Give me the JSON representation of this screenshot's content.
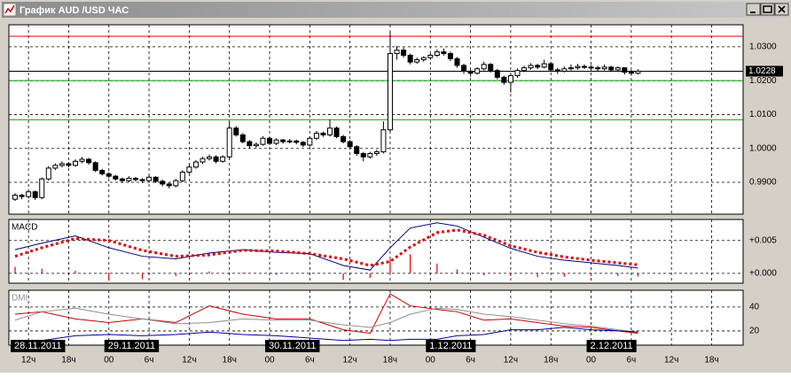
{
  "window": {
    "title": "График AUD /USD ЧАС"
  },
  "chart_data": [
    {
      "type": "candlestick",
      "candles": [
        [
          0.985,
          0.9868,
          0.9845,
          0.9862
        ],
        [
          0.9862,
          0.9866,
          0.985,
          0.9858
        ],
        [
          0.9858,
          0.9878,
          0.9852,
          0.9872
        ],
        [
          0.9872,
          0.9876,
          0.9848,
          0.9855
        ],
        [
          0.9855,
          0.9915,
          0.985,
          0.991
        ],
        [
          0.991,
          0.9948,
          0.9905,
          0.9942
        ],
        [
          0.9942,
          0.9956,
          0.9936,
          0.995
        ],
        [
          0.995,
          0.9962,
          0.9944,
          0.9955
        ],
        [
          0.9955,
          0.996,
          0.9944,
          0.995
        ],
        [
          0.995,
          0.9968,
          0.9946,
          0.9962
        ],
        [
          0.9962,
          0.9975,
          0.9956,
          0.9968
        ],
        [
          0.9968,
          0.9972,
          0.9952,
          0.9958
        ],
        [
          0.9958,
          0.9962,
          0.993,
          0.9935
        ],
        [
          0.9935,
          0.994,
          0.992,
          0.9925
        ],
        [
          0.9925,
          0.993,
          0.9912,
          0.9918
        ],
        [
          0.9918,
          0.9922,
          0.9905,
          0.991
        ],
        [
          0.991,
          0.9914,
          0.9898,
          0.9905
        ],
        [
          0.9905,
          0.9918,
          0.99,
          0.9912
        ],
        [
          0.9912,
          0.9916,
          0.9902,
          0.9908
        ],
        [
          0.9908,
          0.9912,
          0.9898,
          0.9905
        ],
        [
          0.9905,
          0.9922,
          0.99,
          0.9915
        ],
        [
          0.9915,
          0.9918,
          0.9898,
          0.9903
        ],
        [
          0.9903,
          0.9908,
          0.9888,
          0.9895
        ],
        [
          0.9895,
          0.99,
          0.9882,
          0.989
        ],
        [
          0.989,
          0.991,
          0.9885,
          0.9905
        ],
        [
          0.9905,
          0.9936,
          0.99,
          0.993
        ],
        [
          0.993,
          0.9952,
          0.9925,
          0.9945
        ],
        [
          0.9945,
          0.9966,
          0.994,
          0.996
        ],
        [
          0.996,
          0.9976,
          0.9954,
          0.997
        ],
        [
          0.997,
          0.9982,
          0.9964,
          0.9975
        ],
        [
          0.9975,
          0.998,
          0.9956,
          0.9962
        ],
        [
          0.9962,
          0.998,
          0.9958,
          0.9975
        ],
        [
          0.9975,
          1.0078,
          0.997,
          1.006
        ],
        [
          1.006,
          1.0066,
          1.0035,
          1.004
        ],
        [
          1.004,
          1.0045,
          1.0015,
          1.002
        ],
        [
          1.002,
          1.0025,
          1.0,
          1.0008
        ],
        [
          1.0008,
          1.0018,
          1.0002,
          1.0012
        ],
        [
          1.0012,
          1.0036,
          1.0008,
          1.003
        ],
        [
          1.003,
          1.0034,
          1.001,
          1.0015
        ],
        [
          1.0015,
          1.003,
          1.001,
          1.0025
        ],
        [
          1.0025,
          1.0028,
          1.0014,
          1.002
        ],
        [
          1.002,
          1.0028,
          1.0015,
          1.0022
        ],
        [
          1.0022,
          1.0026,
          1.0012,
          1.0018
        ],
        [
          1.0018,
          1.0022,
          1.0004,
          1.001
        ],
        [
          1.001,
          1.0036,
          1.0005,
          1.003
        ],
        [
          1.003,
          1.0052,
          1.0025,
          1.0045
        ],
        [
          1.0045,
          1.005,
          1.0034,
          1.004
        ],
        [
          1.004,
          1.0085,
          1.0035,
          1.006
        ],
        [
          1.006,
          1.0065,
          1.003,
          1.0035
        ],
        [
          1.0035,
          1.004,
          1.0015,
          1.002
        ],
        [
          1.002,
          1.0025,
          0.9998,
          1.0005
        ],
        [
          1.0005,
          1.001,
          0.9978,
          0.9985
        ],
        [
          0.9985,
          0.999,
          0.9962,
          0.9975
        ],
        [
          0.9975,
          0.999,
          0.997,
          0.9985
        ],
        [
          0.9985,
          0.9996,
          0.9978,
          0.999
        ],
        [
          0.999,
          1.008,
          0.9985,
          1.0055
        ],
        [
          1.0055,
          1.0345,
          1.0048,
          1.028
        ],
        [
          1.028,
          1.0302,
          1.0262,
          1.029
        ],
        [
          1.029,
          1.0298,
          1.0268,
          1.0275
        ],
        [
          1.0275,
          1.028,
          1.0248,
          1.0255
        ],
        [
          1.0255,
          1.0268,
          1.025,
          1.0262
        ],
        [
          1.0262,
          1.0272,
          1.0256,
          1.0268
        ],
        [
          1.0268,
          1.028,
          1.0262,
          1.0275
        ],
        [
          1.0275,
          1.0292,
          1.027,
          1.0285
        ],
        [
          1.0285,
          1.0295,
          1.0274,
          1.028
        ],
        [
          1.028,
          1.0286,
          1.0258,
          1.0265
        ],
        [
          1.0265,
          1.027,
          1.0238,
          1.0245
        ],
        [
          1.0245,
          1.025,
          1.022,
          1.0228
        ],
        [
          1.0228,
          1.0234,
          1.0212,
          1.0222
        ],
        [
          1.0222,
          1.024,
          1.0218,
          1.0235
        ],
        [
          1.0235,
          1.0256,
          1.023,
          1.0248
        ],
        [
          1.0248,
          1.0252,
          1.0224,
          1.023
        ],
        [
          1.023,
          1.0235,
          1.0204,
          1.021
        ],
        [
          1.021,
          1.0215,
          1.0188,
          1.0195
        ],
        [
          1.0195,
          1.022,
          1.0165,
          1.0215
        ],
        [
          1.0215,
          1.0236,
          1.0208,
          1.023
        ],
        [
          1.023,
          1.0244,
          1.0225,
          1.0238
        ],
        [
          1.0238,
          1.0252,
          1.0232,
          1.0245
        ],
        [
          1.0245,
          1.025,
          1.0234,
          1.024
        ],
        [
          1.024,
          1.0262,
          1.0236,
          1.025
        ],
        [
          1.025,
          1.0255,
          1.0226,
          1.0232
        ],
        [
          1.0232,
          1.0238,
          1.022,
          1.0228
        ],
        [
          1.0228,
          1.0242,
          1.0224,
          1.0235
        ],
        [
          1.0235,
          1.0248,
          1.023,
          1.0238
        ],
        [
          1.0238,
          1.025,
          1.0232,
          1.0242
        ],
        [
          1.0242,
          1.0248,
          1.0234,
          1.024
        ],
        [
          1.024,
          1.0246,
          1.023,
          1.0238
        ],
        [
          1.0238,
          1.0244,
          1.0228,
          1.0235
        ],
        [
          1.0235,
          1.0248,
          1.023,
          1.024
        ],
        [
          1.024,
          1.0244,
          1.0226,
          1.0232
        ],
        [
          1.0232,
          1.0242,
          1.0228,
          1.0238
        ],
        [
          1.0238,
          1.024,
          1.0218,
          1.0225
        ],
        [
          1.0225,
          1.0232,
          1.0215,
          1.0222
        ],
        [
          1.0222,
          1.0234,
          1.0218,
          1.0228
        ]
      ],
      "xlim": [
        -0.93,
        108.7
      ],
      "ylim": [
        0.9806,
        1.0365
      ],
      "yticks": [
        {
          "value": 0.99,
          "label": "0.9900"
        },
        {
          "value": 1.0,
          "label": "1.0000"
        },
        {
          "value": 1.01,
          "label": "1.0100"
        },
        {
          "value": 1.02,
          "label": "1.0200"
        },
        {
          "value": 1.03,
          "label": "1.0300"
        }
      ],
      "xticks": [
        {
          "value": 2,
          "label": "12ч"
        },
        {
          "value": 8,
          "label": "18ч"
        },
        {
          "value": 14,
          "label": "00"
        },
        {
          "value": 20,
          "label": "6ч"
        },
        {
          "value": 26,
          "label": "12ч"
        },
        {
          "value": 32,
          "label": "18ч"
        },
        {
          "value": 38,
          "label": "00"
        },
        {
          "value": 44,
          "label": "6ч"
        },
        {
          "value": 50,
          "label": "12ч"
        },
        {
          "value": 56,
          "label": "18ч"
        },
        {
          "value": 62,
          "label": "00"
        },
        {
          "value": 68,
          "label": "6ч"
        },
        {
          "value": 74,
          "label": "12ч"
        },
        {
          "value": 80,
          "label": "18ч"
        },
        {
          "value": 86,
          "label": "00"
        },
        {
          "value": 92,
          "label": "6ч"
        },
        {
          "value": 98,
          "label": "12ч"
        },
        {
          "value": 104,
          "label": "18ч"
        }
      ],
      "date_labels": [
        {
          "value": 0,
          "label": "28.11.2011"
        },
        {
          "value": 14,
          "label": "29.11.2011"
        },
        {
          "value": 38,
          "label": "30.11.2011"
        },
        {
          "value": 62,
          "label": "1.12.2011"
        },
        {
          "value": 86,
          "label": "2.12.2011"
        }
      ],
      "current_price": 1.0228,
      "levels": [
        {
          "value": 1.02,
          "color": "#00a000"
        },
        {
          "value": 1.0085,
          "color": "#00a000"
        },
        {
          "value": 1.0331,
          "color": "#e00000"
        }
      ],
      "grid": true
    },
    {
      "type": "line",
      "title": "MACD",
      "x": [
        0,
        4,
        9,
        14,
        19,
        24,
        29,
        34,
        39,
        44,
        49,
        53,
        56,
        59,
        63,
        66,
        70,
        74,
        78,
        82,
        86,
        90,
        93
      ],
      "series": [
        {
          "color": "#000080",
          "values": [
            0.0036,
            0.0046,
            0.0057,
            0.0039,
            0.0026,
            0.0022,
            0.0031,
            0.0036,
            0.0032,
            0.003,
            0.0012,
            0.0005,
            0.0039,
            0.0069,
            0.0077,
            0.0072,
            0.0055,
            0.0038,
            0.0026,
            0.002,
            0.0016,
            0.0012,
            0.0008
          ]
        },
        {
          "color": "#e00000",
          "style": "dotted",
          "values": [
            0.0026,
            0.0039,
            0.0053,
            0.005,
            0.0035,
            0.0026,
            0.0028,
            0.0035,
            0.0034,
            0.003,
            0.0022,
            0.0012,
            0.0018,
            0.004,
            0.0062,
            0.0066,
            0.0058,
            0.0042,
            0.0032,
            0.0025,
            0.002,
            0.0016,
            0.0013
          ]
        }
      ],
      "histogram": {
        "color": "#e00000",
        "values": [
          0.001,
          0.0007,
          0.0004,
          -0.0011,
          -0.0009,
          -0.0004,
          0.0003,
          0.0001,
          -0.0002,
          0,
          -0.001,
          -0.0007,
          0.0021,
          0.0029,
          0.0015,
          0.0006,
          -0.0003,
          -0.0004,
          -0.0006,
          -0.0005,
          -0.0004,
          -0.0004,
          -0.0005
        ]
      },
      "ylim": [
        -0.0015,
        0.0082
      ],
      "yticks": [
        {
          "value": 0.005,
          "label": "+0.005"
        },
        {
          "value": 0,
          "label": "+0.000"
        }
      ],
      "grid": true
    },
    {
      "type": "line",
      "title": "DMI",
      "x": [
        0,
        4,
        9,
        14,
        19,
        24,
        29,
        34,
        39,
        44,
        49,
        53,
        56,
        59,
        63,
        66,
        70,
        74,
        78,
        82,
        86,
        90,
        93
      ],
      "series": [
        {
          "color": "#cc0000",
          "values": [
            34,
            36,
            30,
            27,
            30,
            27,
            41,
            34,
            30,
            30,
            21,
            18,
            51,
            41,
            38,
            36,
            29,
            30,
            27,
            24,
            23,
            20,
            18
          ]
        },
        {
          "color": "#909090",
          "values": [
            29,
            36,
            39,
            34,
            30,
            26,
            27,
            30,
            29,
            29,
            25,
            23,
            27,
            34,
            39,
            38,
            34,
            32,
            29,
            26,
            24,
            21,
            19
          ]
        },
        {
          "color": "#000099",
          "values": [
            12,
            12,
            16,
            17,
            16,
            17,
            19,
            17,
            16,
            14,
            12,
            13,
            12,
            13,
            13,
            16,
            17,
            21,
            21,
            23,
            21,
            20,
            19
          ]
        }
      ],
      "ylim": [
        8.1,
        54
      ],
      "yticks": [
        40,
        20
      ],
      "grid": true
    }
  ]
}
